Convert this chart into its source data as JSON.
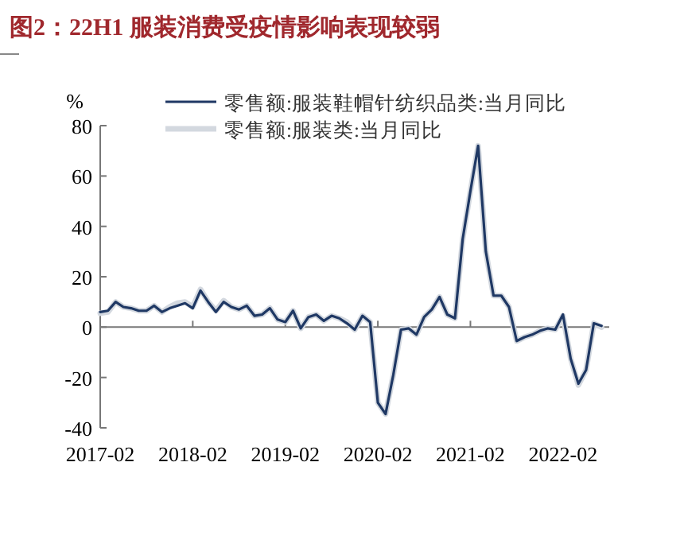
{
  "chart_data": {
    "type": "line",
    "title": "图2：22H1 服装消费受疫情影响表现较弱",
    "ylabel": "%",
    "x": [
      "2017-02",
      "2017-03",
      "2017-04",
      "2017-05",
      "2017-06",
      "2017-07",
      "2017-08",
      "2017-09",
      "2017-10",
      "2017-11",
      "2017-12",
      "2018-01",
      "2018-02",
      "2018-03",
      "2018-04",
      "2018-05",
      "2018-06",
      "2018-07",
      "2018-08",
      "2018-09",
      "2018-10",
      "2018-11",
      "2018-12",
      "2019-01",
      "2019-02",
      "2019-03",
      "2019-04",
      "2019-05",
      "2019-06",
      "2019-07",
      "2019-08",
      "2019-09",
      "2019-10",
      "2019-11",
      "2019-12",
      "2020-01",
      "2020-02",
      "2020-03",
      "2020-04",
      "2020-05",
      "2020-06",
      "2020-07",
      "2020-08",
      "2020-09",
      "2020-10",
      "2020-11",
      "2020-12",
      "2021-01",
      "2021-02",
      "2021-03",
      "2021-04",
      "2021-05",
      "2021-06",
      "2021-07",
      "2021-08",
      "2021-09",
      "2021-10",
      "2021-11",
      "2021-12",
      "2022-01",
      "2022-02",
      "2022-03",
      "2022-04",
      "2022-05",
      "2022-06",
      "2022-07"
    ],
    "series": [
      {
        "name": "零售额:服装类:当月同比",
        "color": "#d3d8df",
        "values": [
          5.5,
          6,
          10,
          8,
          7.5,
          6.5,
          6.5,
          8.5,
          6,
          8,
          9.5,
          10,
          8,
          15,
          10,
          6.5,
          10.5,
          8,
          7,
          8.5,
          4.5,
          5,
          7.5,
          3,
          2,
          6.5,
          -0.5,
          4,
          5,
          2.5,
          4.5,
          3.5,
          2,
          -1,
          4.5,
          2,
          -30,
          -34.5,
          -19,
          -1,
          -0.5,
          -3,
          4,
          7,
          12,
          5,
          3.5,
          35,
          54,
          72,
          30,
          12.5,
          12.5,
          8,
          -5.5,
          -4,
          -3,
          -1.5,
          -0.5,
          -1,
          4.5,
          -12.5,
          -23,
          -17,
          1.5,
          0
        ]
      },
      {
        "name": "零售额:服装鞋帽针纺织品类:当月同比",
        "color": "#1f3864",
        "values": [
          6,
          6.5,
          10,
          8,
          7.5,
          6.5,
          6.5,
          8.5,
          6,
          7.5,
          8.5,
          9.5,
          7.5,
          14.5,
          10,
          6,
          10,
          8,
          7,
          8.5,
          4.5,
          5,
          7.5,
          3,
          2,
          6.5,
          -0.5,
          4,
          5,
          2.5,
          4.5,
          3.5,
          1.5,
          -1,
          4.5,
          2,
          -30,
          -34.5,
          -19,
          -1,
          -0.5,
          -3,
          4,
          7,
          12,
          5,
          3.5,
          35,
          54,
          72,
          30,
          12.5,
          12.5,
          8,
          -5.5,
          -4,
          -3,
          -1.5,
          -0.5,
          -1,
          5,
          -12.5,
          -22.5,
          -17,
          1.5,
          0.5
        ]
      }
    ],
    "xlim": [
      "2017-02",
      "2022-08"
    ],
    "xticks": [
      "2017-02",
      "2018-02",
      "2019-02",
      "2020-02",
      "2021-02",
      "2022-02"
    ],
    "ylim": [
      -40,
      80
    ],
    "yticks": [
      -40,
      -20,
      0,
      20,
      40,
      60,
      80
    ],
    "legend": "top"
  }
}
